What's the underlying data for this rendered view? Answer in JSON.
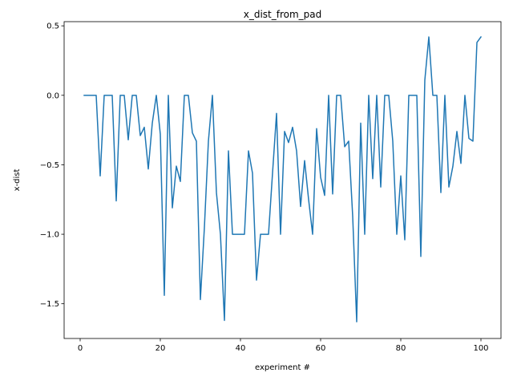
{
  "chart_data": {
    "type": "line",
    "title": "x_dist_from_pad",
    "xlabel": "experiment #",
    "ylabel": "x-dist",
    "xlim": [
      -4,
      105
    ],
    "ylim": [
      -1.75,
      0.53
    ],
    "xticks": [
      0,
      20,
      40,
      60,
      80,
      100
    ],
    "xtick_labels": [
      "0",
      "20",
      "40",
      "60",
      "80",
      "100"
    ],
    "yticks": [
      0.5,
      0.0,
      -0.5,
      -1.0,
      -1.5
    ],
    "ytick_labels": [
      "0.5",
      "0.0",
      "−0.5",
      "−1.0",
      "−1.5"
    ],
    "grid": false,
    "series": [
      {
        "color": "#1f77b4",
        "x": [
          1,
          2,
          3,
          4,
          5,
          6,
          7,
          8,
          9,
          10,
          11,
          12,
          13,
          14,
          15,
          16,
          17,
          18,
          19,
          20,
          21,
          22,
          23,
          24,
          25,
          26,
          27,
          28,
          29,
          30,
          31,
          32,
          33,
          34,
          35,
          36,
          37,
          38,
          39,
          40,
          41,
          42,
          43,
          44,
          45,
          46,
          47,
          48,
          49,
          50,
          51,
          52,
          53,
          54,
          55,
          56,
          57,
          58,
          59,
          60,
          61,
          62,
          63,
          64,
          65,
          66,
          67,
          68,
          69,
          70,
          71,
          72,
          73,
          74,
          75,
          76,
          77,
          78,
          79,
          80,
          81,
          82,
          83,
          84,
          85,
          86,
          87,
          88,
          89,
          90,
          91,
          92,
          93,
          94,
          95,
          96,
          97,
          98,
          99,
          100
        ],
        "y": [
          0,
          0,
          0,
          0,
          -0.58,
          0,
          0,
          0,
          -0.76,
          0,
          0,
          -0.32,
          0,
          0,
          -0.29,
          -0.23,
          -0.53,
          -0.2,
          0,
          -0.28,
          -1.44,
          0,
          -0.81,
          -0.51,
          -0.62,
          0,
          0,
          -0.27,
          -0.33,
          -1.47,
          -0.95,
          -0.33,
          0,
          -0.7,
          -1.0,
          -1.62,
          -0.4,
          -1.0,
          -1.0,
          -1.0,
          -1.0,
          -0.4,
          -0.56,
          -1.33,
          -1.0,
          -1.0,
          -1.0,
          -0.56,
          -0.13,
          -1.0,
          -0.26,
          -0.34,
          -0.23,
          -0.4,
          -0.8,
          -0.47,
          -0.75,
          -1.0,
          -0.24,
          -0.59,
          -0.72,
          0,
          -0.71,
          0,
          0,
          -0.37,
          -0.33,
          -0.87,
          -1.63,
          -0.2,
          -1.0,
          0,
          -0.6,
          0,
          -0.66,
          0,
          0,
          -0.33,
          -1.0,
          -0.58,
          -1.04,
          0,
          0,
          0,
          -1.16,
          0.11,
          0.42,
          0,
          0,
          -0.7,
          0,
          -0.66,
          -0.51,
          -0.26,
          -0.49,
          0,
          -0.31,
          -0.33,
          0.38,
          0.42
        ]
      }
    ]
  }
}
